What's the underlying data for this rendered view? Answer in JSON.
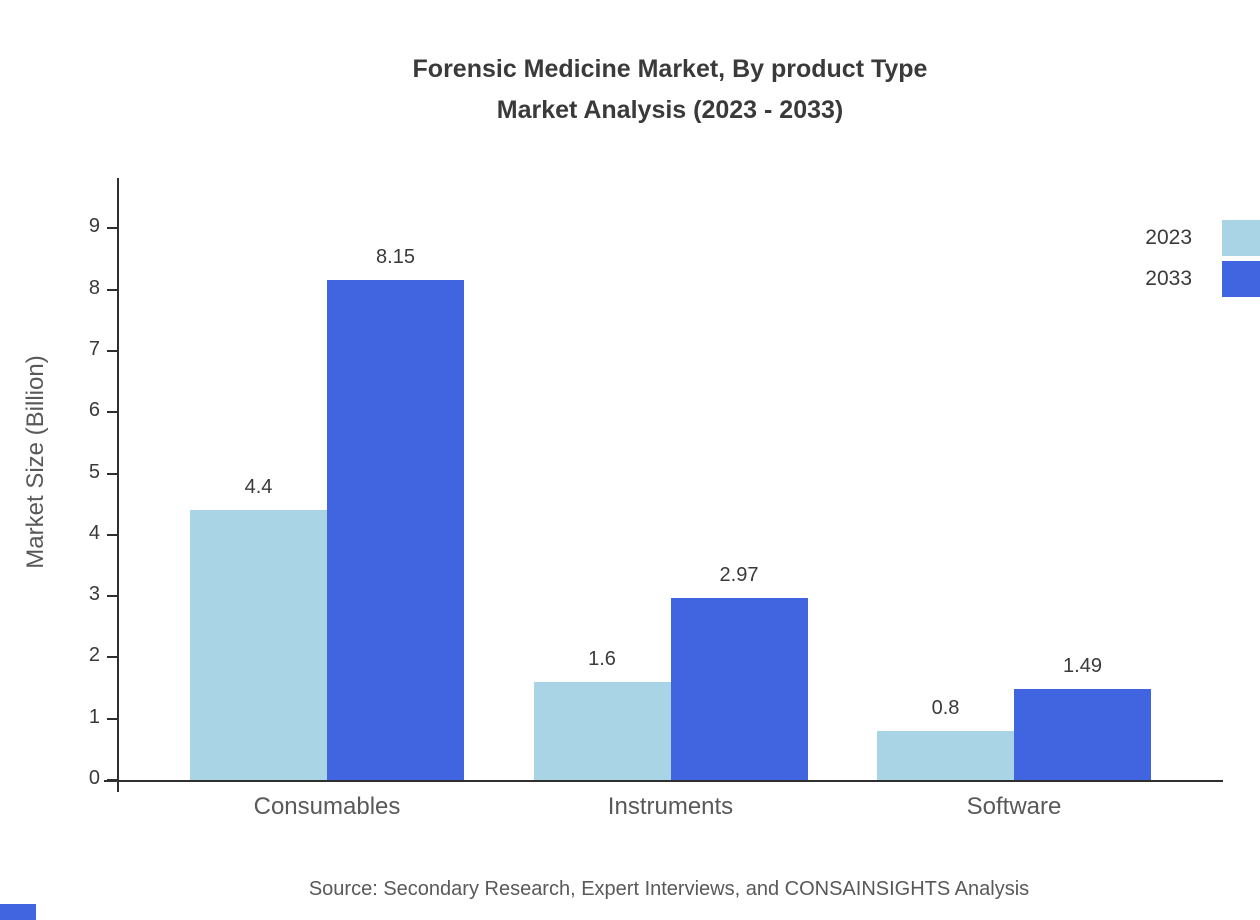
{
  "title": {
    "line1": "Forensic Medicine Market, By product Type",
    "line2": "Market Analysis (2023 - 2033)"
  },
  "chart_data": {
    "type": "bar",
    "categories": [
      "Consumables",
      "Instruments",
      "Software"
    ],
    "series": [
      {
        "name": "2023",
        "color": "#a9d4e6",
        "values": [
          4.4,
          1.6,
          0.8
        ]
      },
      {
        "name": "2033",
        "color": "#4165e1",
        "values": [
          8.15,
          2.97,
          1.49
        ]
      }
    ],
    "title": "Forensic Medicine Market, By product Type Market Analysis (2023 - 2033)",
    "xlabel": "",
    "ylabel": "Market Size (Billion)",
    "ylim": [
      0,
      9
    ],
    "yticks": [
      0,
      1,
      2,
      3,
      4,
      5,
      6,
      7,
      8,
      9
    ],
    "grid": false,
    "legend_position": "top-right",
    "bar_value_labels": [
      "4.4",
      "8.15",
      "1.6",
      "2.97",
      "0.8",
      "1.49"
    ]
  },
  "source": "Source: Secondary Research, Expert Interviews, and CONSAINSIGHTS Analysis",
  "colors": {
    "series_2023": "#a9d4e6",
    "series_2033": "#4165e1",
    "axis": "#2f2f2f",
    "text_dark": "#3a3a3a",
    "text_gray": "#595959"
  }
}
